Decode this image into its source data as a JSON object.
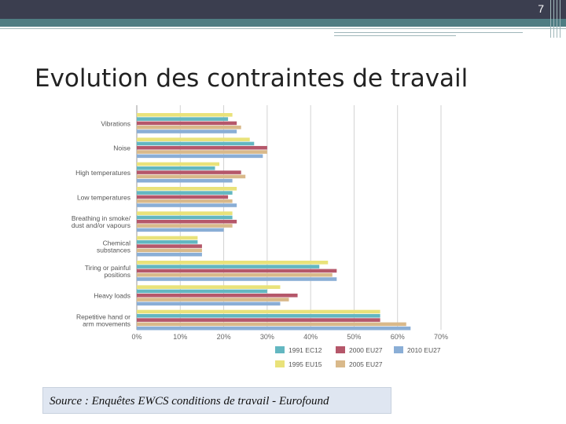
{
  "slide": {
    "number": "7",
    "title": "Evolution des contraintes de travail",
    "source": "Source : Enquêtes EWCS conditions de travail - Eurofound"
  },
  "colors": {
    "header_dark": "#3b3e4f",
    "header_teal": "#4f7d83",
    "source_bg": "#dfe6f1"
  },
  "chart_data": {
    "type": "bar",
    "orientation": "horizontal",
    "categories": [
      [
        "Vibrations"
      ],
      [
        "Noise"
      ],
      [
        "High temperatures"
      ],
      [
        "Low temperatures"
      ],
      [
        "Breathing in smoke/",
        "dust and/or vapours"
      ],
      [
        "Chemical",
        "substances"
      ],
      [
        "Tiring or painful",
        "positions"
      ],
      [
        "Heavy loads"
      ],
      [
        "Repetitive hand or",
        "arm movements"
      ]
    ],
    "series": [
      {
        "name": "1995 EU15",
        "color": "#e9e27a",
        "values": [
          22,
          26,
          19,
          23,
          22,
          14,
          44,
          33,
          56
        ]
      },
      {
        "name": "1991 EC12",
        "color": "#63b7c1",
        "values": [
          21,
          27,
          18,
          22,
          22,
          14,
          42,
          30,
          56
        ]
      },
      {
        "name": "2000 EU27",
        "color": "#b5576a",
        "values": [
          23,
          30,
          24,
          21,
          23,
          15,
          46,
          37,
          56
        ]
      },
      {
        "name": "2005 EU27",
        "color": "#d9b98a",
        "values": [
          24,
          30,
          25,
          22,
          22,
          15,
          45,
          35,
          62
        ]
      },
      {
        "name": "2010 EU27",
        "color": "#8aaed6",
        "values": [
          23,
          29,
          22,
          23,
          20,
          15,
          46,
          33,
          63
        ]
      }
    ],
    "legend": [
      {
        "name": "1991 EC12",
        "color": "#63b7c1"
      },
      {
        "name": "2000 EU27",
        "color": "#b5576a"
      },
      {
        "name": "2010 EU27",
        "color": "#8aaed6"
      },
      {
        "name": "1995 EU15",
        "color": "#e9e27a"
      },
      {
        "name": "2005 EU27",
        "color": "#d9b98a"
      }
    ],
    "xlim": [
      0,
      70
    ],
    "xticks": [
      "0%",
      "10%",
      "20%",
      "30%",
      "40%",
      "50%",
      "60%",
      "70%"
    ],
    "grid": true,
    "legend_position": "bottom"
  }
}
